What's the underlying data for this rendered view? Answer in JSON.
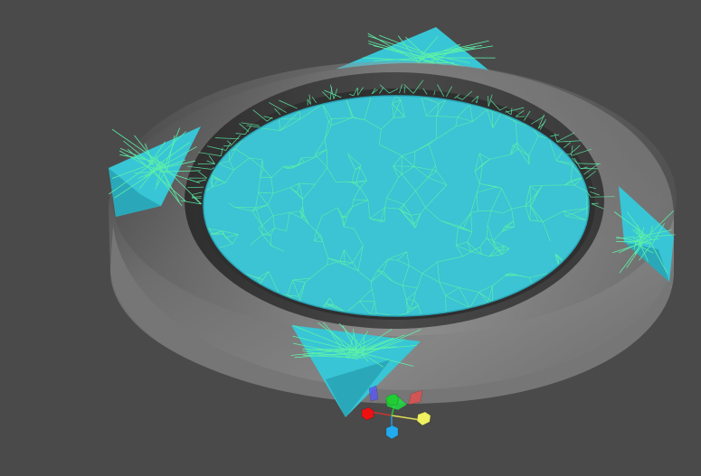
{
  "viewport": {
    "background_color": "#4a4a4a",
    "mesh_colors": {
      "ring_light": "#8a8a8a",
      "ring_dark": "#555555",
      "ring_inner": "#3e3e3e",
      "water_fill": "#3cc3d4",
      "water_edge": "#29a5b8",
      "wire": "#5df0a8",
      "corner_fill": "#38c6d6"
    },
    "objects": [
      {
        "name": "ring-mesh"
      },
      {
        "name": "water-surface-mesh"
      },
      {
        "name": "corner-piece-top"
      },
      {
        "name": "corner-piece-left"
      },
      {
        "name": "corner-piece-right"
      },
      {
        "name": "corner-piece-bottom"
      }
    ]
  },
  "gizmo": {
    "handles": [
      {
        "name": "plane-handle-xy",
        "color": "#5a5af0"
      },
      {
        "name": "plane-handle-yz",
        "color": "#22dd44"
      },
      {
        "name": "plane-handle-xz",
        "color": "#e05050"
      },
      {
        "name": "axis-handle-x",
        "color": "#ee1111"
      },
      {
        "name": "axis-handle-y",
        "color": "#22cc33"
      },
      {
        "name": "axis-handle-z",
        "color": "#22aaee"
      },
      {
        "name": "center-handle",
        "color": "#f0f060"
      }
    ]
  }
}
